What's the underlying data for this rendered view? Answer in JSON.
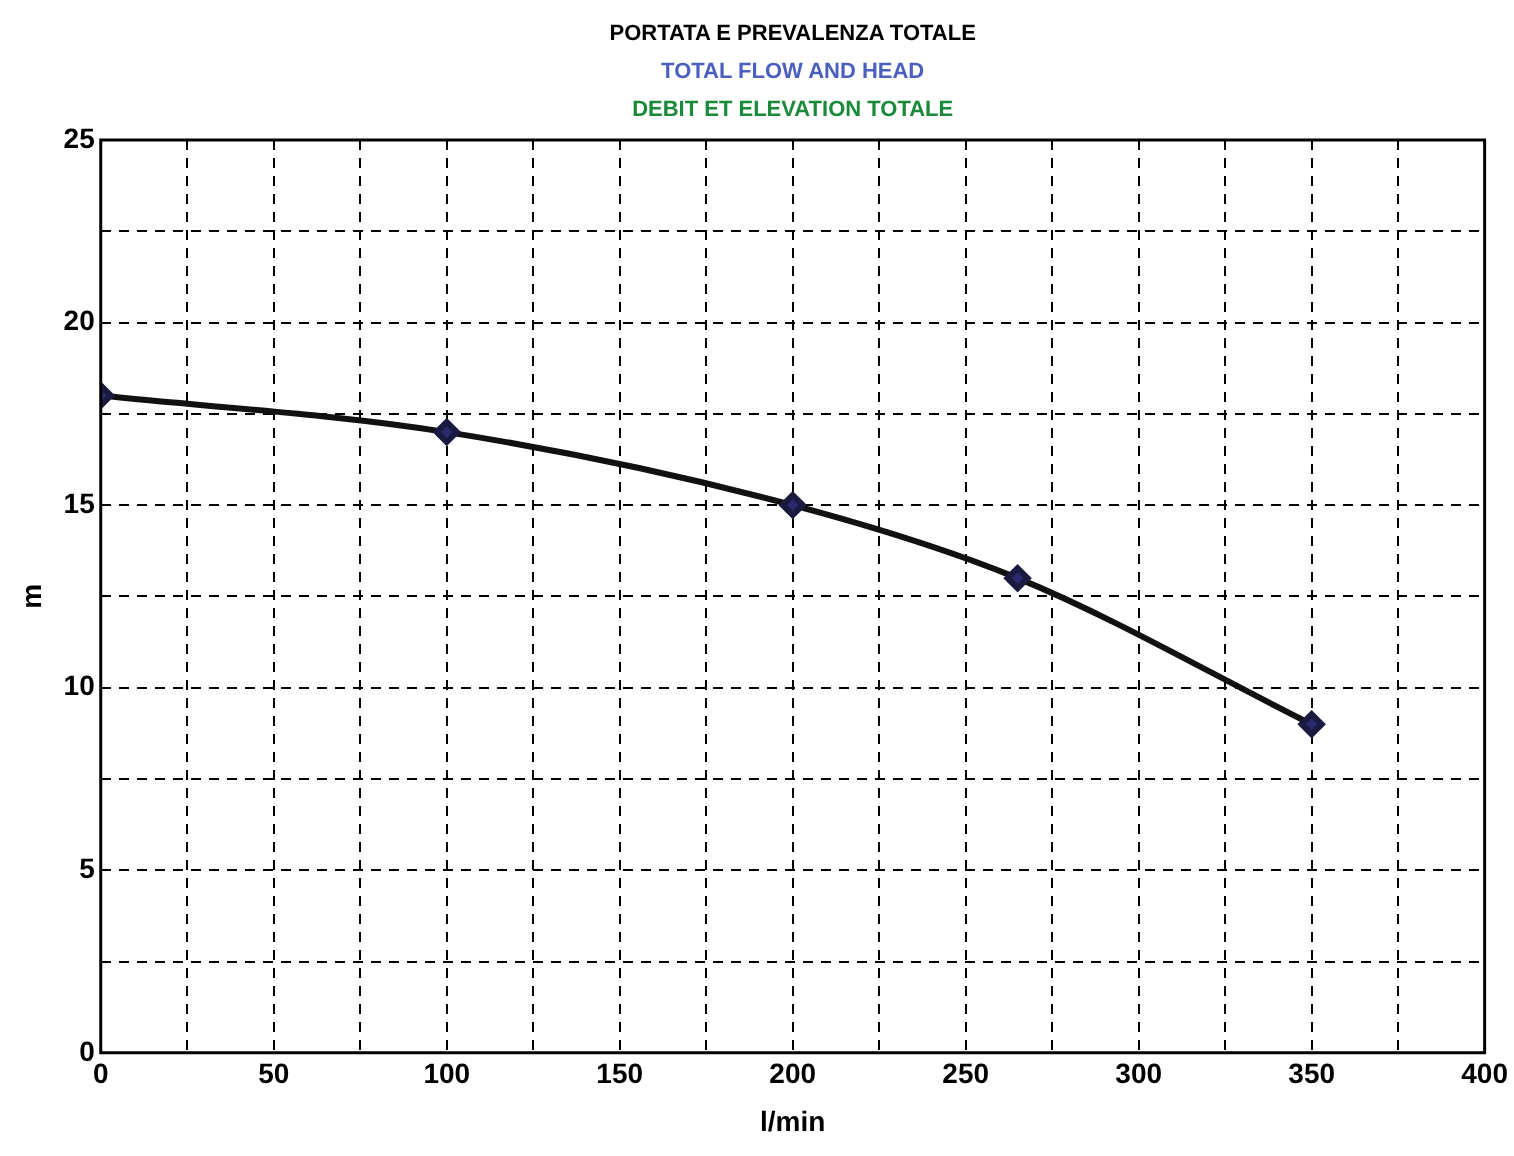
{
  "chart_data": {
    "type": "line",
    "title": "PORTATA E PREVALENZA TOTALE",
    "subtitle": "TOTAL FLOW AND HEAD",
    "annotations": [
      "DEBIT ET ELEVATION TOTALE"
    ],
    "xlabel": "l/min",
    "ylabel": "m",
    "x": [
      0,
      100,
      200,
      265,
      350
    ],
    "series": [
      {
        "color": "#111111",
        "values": [
          18,
          17,
          15,
          13,
          9
        ]
      }
    ],
    "xlim": [
      0,
      400
    ],
    "ylim": [
      0,
      25
    ],
    "xticks": [
      0,
      {
        "value": 25,
        "label": null
      },
      50,
      {
        "value": 75,
        "label": null
      },
      100,
      {
        "value": 125,
        "label": null
      },
      150,
      {
        "value": 175,
        "label": null
      },
      200,
      {
        "value": 225,
        "label": null
      },
      250,
      {
        "value": 275,
        "label": null
      },
      300,
      {
        "value": 325,
        "label": null
      },
      350,
      {
        "value": 375,
        "label": null
      },
      400
    ],
    "yticks": [
      0,
      {
        "value": 2.5,
        "label": null
      },
      5,
      {
        "value": 7.5,
        "label": null
      },
      10,
      {
        "value": 12.5,
        "label": null
      },
      15,
      {
        "value": 17.5,
        "label": null
      },
      20,
      {
        "value": 22.5,
        "label": null
      },
      25
    ],
    "grid": true,
    "marker": "diamond",
    "line_style": "solid"
  }
}
